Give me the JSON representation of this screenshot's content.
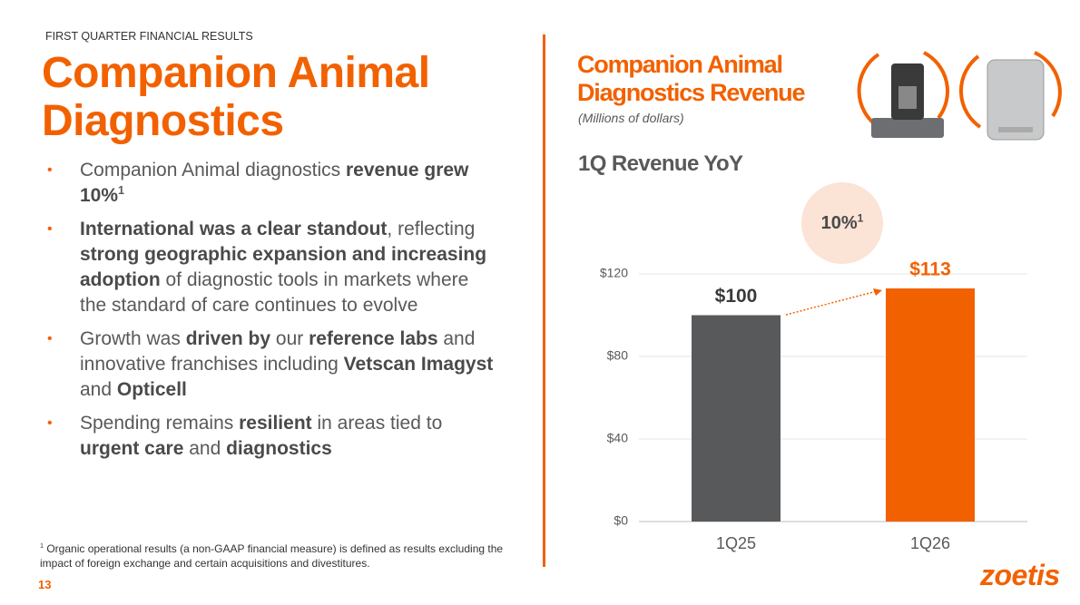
{
  "header": {
    "kicker": "FIRST QUARTER FINANCIAL RESULTS",
    "title": "Companion Animal Diagnostics"
  },
  "bullets": [
    [
      {
        "t": "Companion Animal diagnostics "
      },
      {
        "t": "revenue grew 10%",
        "b": true
      },
      {
        "t": "1",
        "sup": true,
        "b": true
      }
    ],
    [
      {
        "t": "International was a clear standout",
        "b": true
      },
      {
        "t": ", reflecting "
      },
      {
        "t": "strong geographic expansion and increasing adoption",
        "b": true
      },
      {
        "t": " of diagnostic tools in markets where the standard of care continues to evolve"
      }
    ],
    [
      {
        "t": "Growth was "
      },
      {
        "t": "driven by",
        "b": true
      },
      {
        "t": " our "
      },
      {
        "t": "reference labs",
        "b": true
      },
      {
        "t": " and innovative franchises including "
      },
      {
        "t": "Vetscan Imagyst",
        "b": true
      },
      {
        "t": " and "
      },
      {
        "t": "Opticell",
        "b": true
      }
    ],
    [
      {
        "t": "Spending remains "
      },
      {
        "t": "resilient",
        "b": true
      },
      {
        "t": " in areas tied to "
      },
      {
        "t": "urgent care",
        "b": true
      },
      {
        "t": " and "
      },
      {
        "t": "diagnostics",
        "b": true
      }
    ]
  ],
  "footnote": {
    "mark": "1",
    "text": "Organic operational results (a non-GAAP financial measure) is defined as results excluding the impact of foreign exchange and certain acquisitions and divestitures."
  },
  "page_number": "13",
  "logo": "zoetis",
  "chart_data": {
    "type": "bar",
    "title": "Companion Animal Diagnostics Revenue",
    "subtitle": "(Millions of dollars)",
    "heading": "1Q Revenue YoY",
    "annotation": {
      "text": "10%",
      "sup": "1"
    },
    "categories": [
      "1Q25",
      "1Q26"
    ],
    "values": [
      100,
      113
    ],
    "value_labels": [
      "$100",
      "$113"
    ],
    "colors": [
      "#58595b",
      "#f26100"
    ],
    "ylim": [
      0,
      120
    ],
    "yticks": [
      {
        "value": 0,
        "label": "$0"
      },
      {
        "value": 40,
        "label": "$40"
      },
      {
        "value": 80,
        "label": "$80"
      },
      {
        "value": 120,
        "label": "$120"
      }
    ],
    "grid": true
  }
}
